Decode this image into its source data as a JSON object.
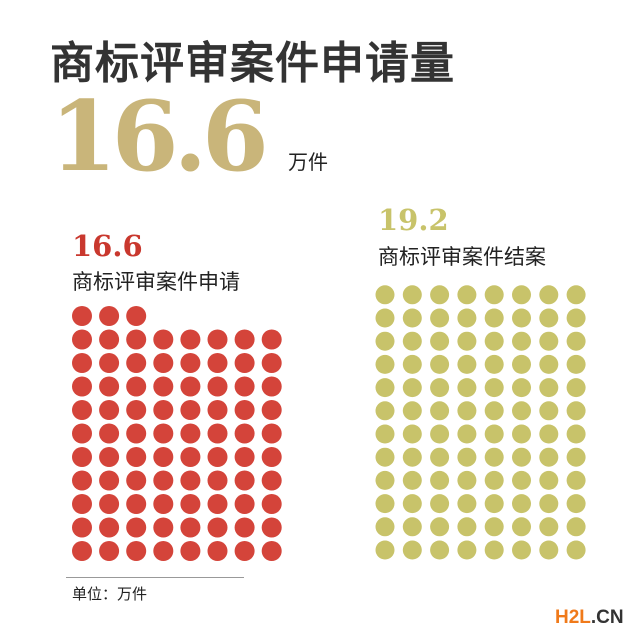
{
  "title": "商标评审案件申请量",
  "headline": {
    "value": "16.6",
    "unit": "万件"
  },
  "watermark": {
    "part1": "H2L",
    "part2": ".CN"
  },
  "chart_data": {
    "type": "pictogram",
    "unit_note": "单位：万件",
    "unit_per_dot": 0.2,
    "columns": 8,
    "series": [
      {
        "name": "商标评审案件申请",
        "value": 16.6,
        "value_label": "16.6",
        "dots": 83,
        "color": "#d4443a"
      },
      {
        "name": "商标评审案件结案",
        "value": 19.2,
        "value_label": "19.2",
        "dots": 96,
        "color": "#c8c36a"
      }
    ]
  }
}
